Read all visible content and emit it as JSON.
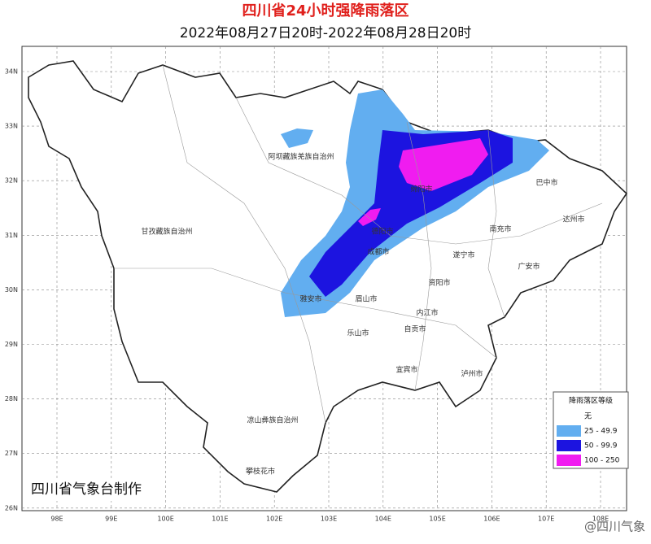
{
  "header": {
    "title": "四川省24小时强降雨落区",
    "subtitle": "2022年08月27日20时-2022年08月28日20时"
  },
  "lat_labels": [
    "34N",
    "33N",
    "32N",
    "31N",
    "30N",
    "29N",
    "28N",
    "27N",
    "26N"
  ],
  "lon_labels": [
    "98E",
    "99E",
    "100E",
    "101E",
    "102E",
    "103E",
    "104E",
    "105E",
    "106E",
    "107E",
    "108E"
  ],
  "places": [
    "阿坝藏族羌族自治州",
    "甘孜藏族自治州",
    "绵阳市",
    "巴中市",
    "达州市",
    "南充市",
    "德阳市",
    "成都市",
    "遂宁市",
    "广安市",
    "资阳市",
    "眉山市",
    "雅安市",
    "内江市",
    "乐山市",
    "自贡市",
    "宜宾市",
    "泸州市",
    "凉山彝族自治州",
    "攀枝花市"
  ],
  "legend": {
    "title": "降雨落区等级",
    "items": [
      {
        "label": "无",
        "color": "#ffffff"
      },
      {
        "label": "25 - 49.9",
        "color": "#62aef0"
      },
      {
        "label": "50 - 99.9",
        "color": "#1c14e0"
      },
      {
        "label": "100 - 250",
        "color": "#f01cf0"
      }
    ]
  },
  "credit": "四川省气象台制作",
  "watermark": "@四川气象"
}
